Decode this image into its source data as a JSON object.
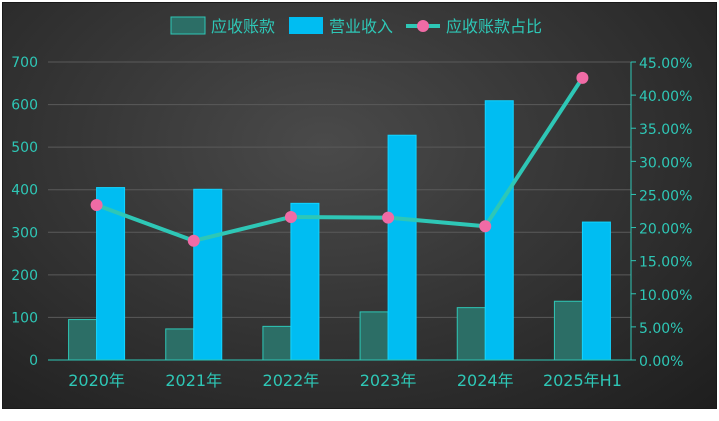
{
  "chart_data": {
    "type": "bar",
    "categories": [
      "2020年",
      "2021年",
      "2022年",
      "2023年",
      "2024年",
      "2025年H1"
    ],
    "series": [
      {
        "name": "应收账款",
        "type": "bar",
        "axis": "left",
        "values": [
          95,
          73,
          79,
          113,
          123,
          138
        ]
      },
      {
        "name": "营业收入",
        "type": "bar",
        "axis": "left",
        "values": [
          405,
          401,
          368,
          528,
          609,
          324
        ]
      },
      {
        "name": "应收账款占比",
        "type": "line",
        "axis": "right",
        "values": [
          23.4,
          18.0,
          21.6,
          21.5,
          20.2,
          42.6
        ]
      }
    ],
    "y_left": {
      "min": 0,
      "max": 700,
      "ticks": [
        "0",
        "100",
        "200",
        "300",
        "400",
        "500",
        "600",
        "700"
      ]
    },
    "y_right": {
      "min": 0,
      "max": 45,
      "ticks": [
        "0.00%",
        "5.00%",
        "10.00%",
        "15.00%",
        "20.00%",
        "25.00%",
        "30.00%",
        "35.00%",
        "40.00%",
        "45.00%"
      ]
    },
    "legend": "top-center",
    "grid": true,
    "colors": {
      "receivables": "#2c6e66",
      "receivables_border": "#2ec7b6",
      "revenue": "#00bdf2",
      "ratio_line": "#2ec7b6",
      "ratio_marker": "#f06ba5",
      "axis_text": "#2ec7b6",
      "grid": "#5a5a5a"
    }
  }
}
